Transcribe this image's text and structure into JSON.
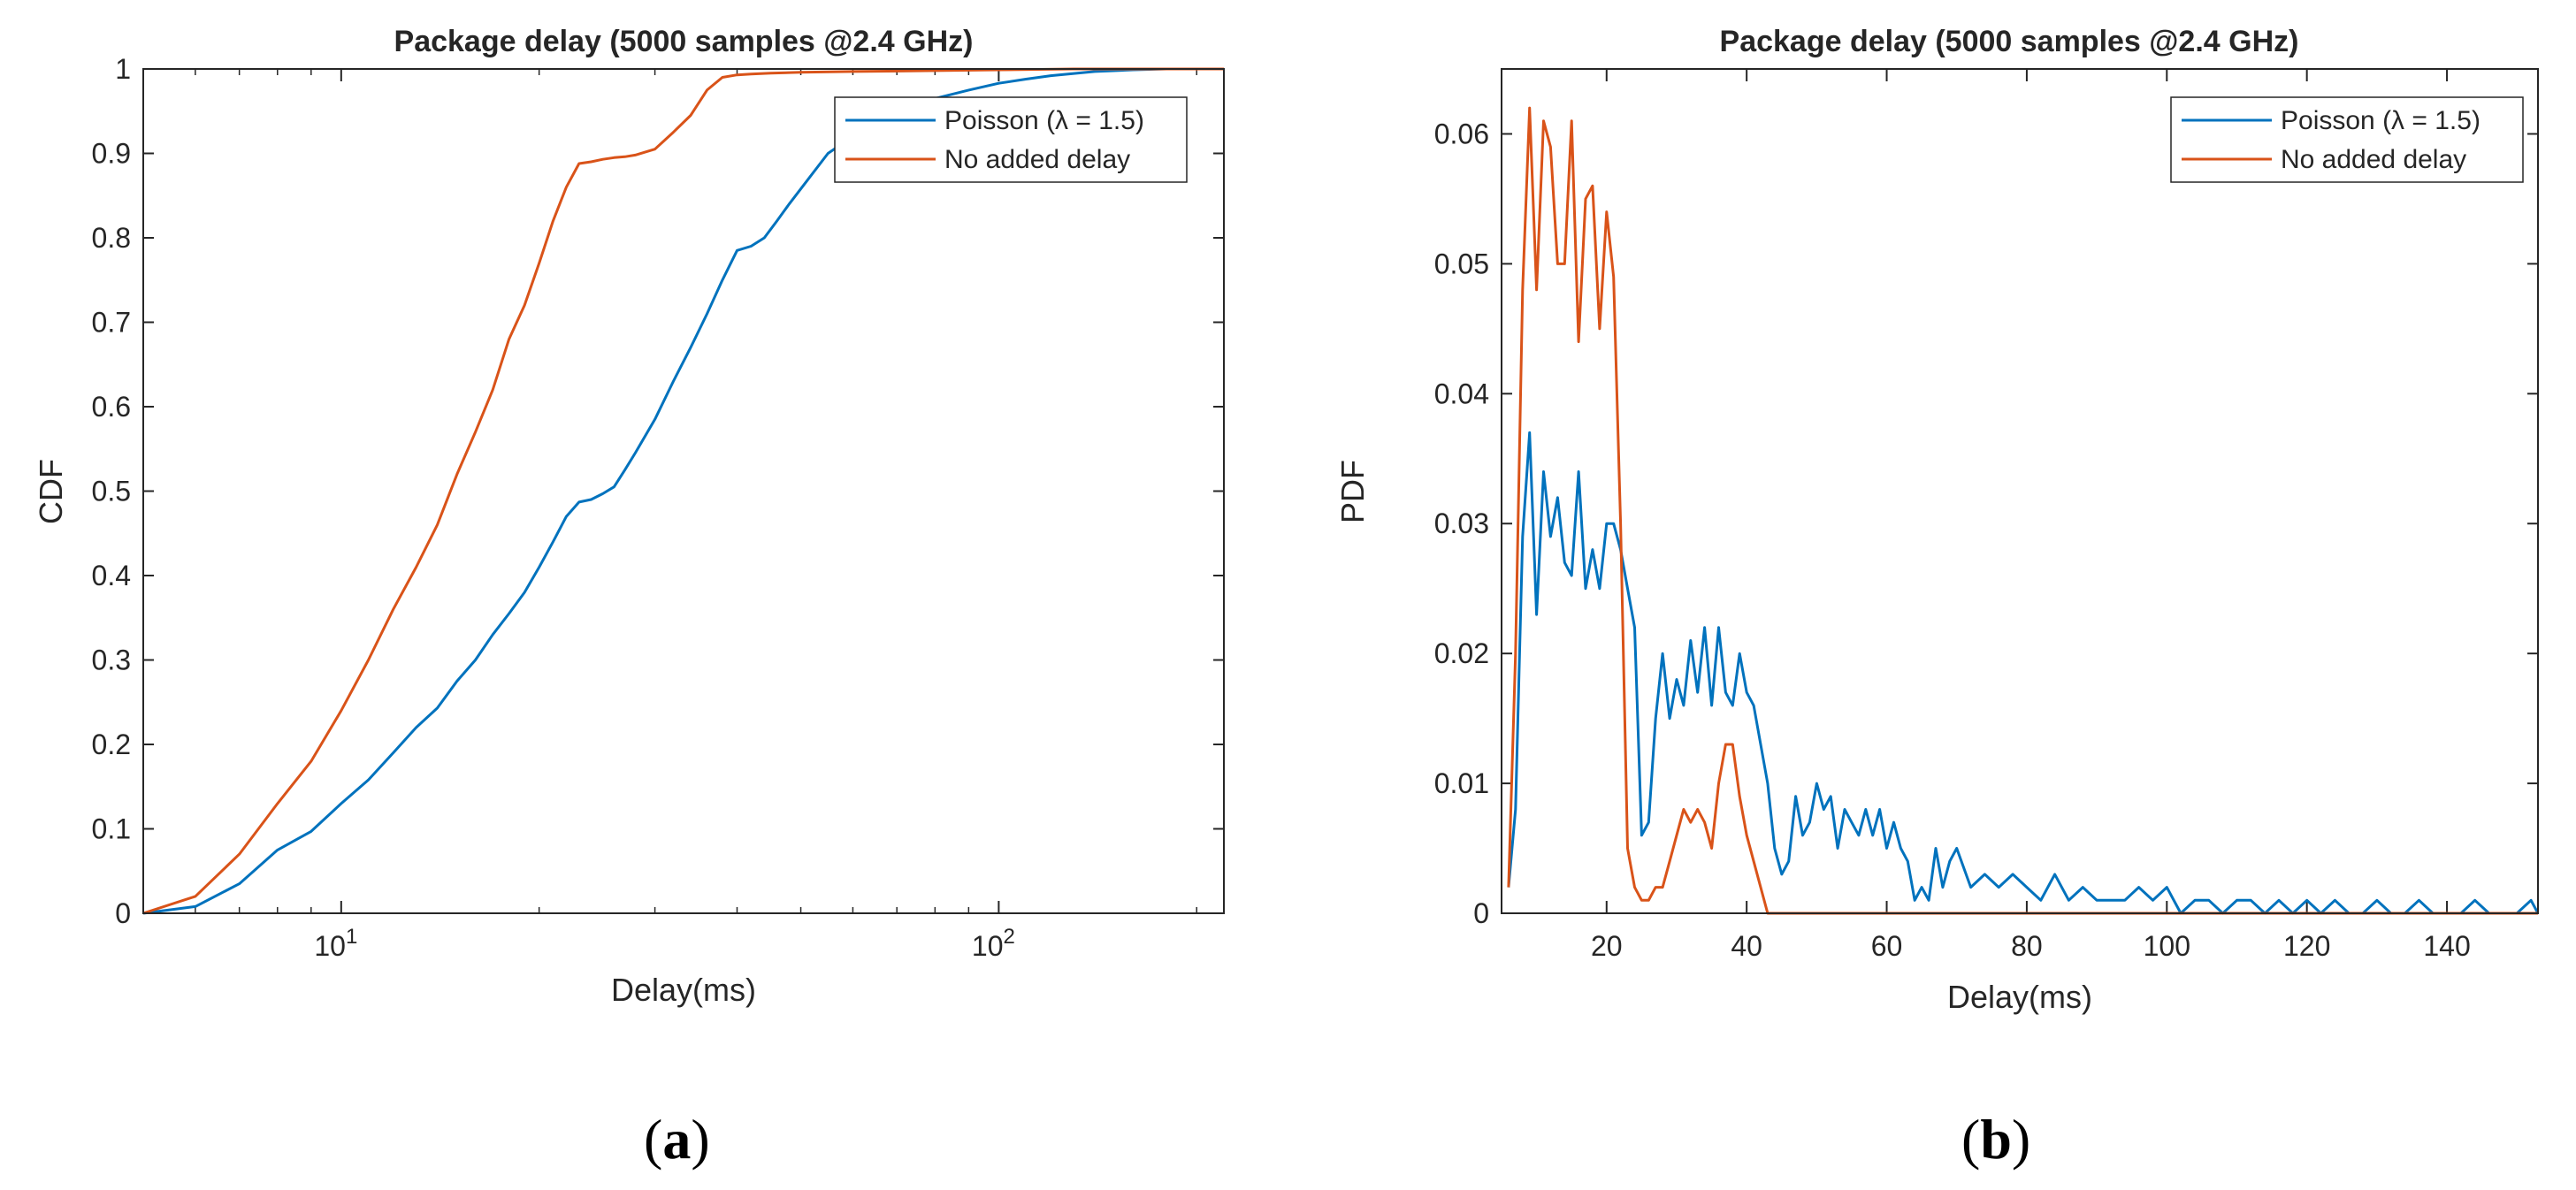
{
  "chart_data": [
    {
      "id": "a",
      "type": "line",
      "title": "Package delay (5000 samples @2.4 GHz)",
      "xlabel": "Delay(ms)",
      "ylabel": "CDF",
      "xscale": "log",
      "xlim": [
        5,
        220
      ],
      "ylim": [
        0,
        1
      ],
      "xticks": [
        10,
        100
      ],
      "xtick_labels": [
        {
          "base": "10",
          "exp": "1"
        },
        {
          "base": "10",
          "exp": "2"
        }
      ],
      "yticks": [
        0,
        0.1,
        0.2,
        0.3,
        0.4,
        0.5,
        0.6,
        0.7,
        0.8,
        0.9,
        1
      ],
      "ytick_labels": [
        "0",
        "0.1",
        "0.2",
        "0.3",
        "0.4",
        "0.5",
        "0.6",
        "0.7",
        "0.8",
        "0.9",
        "1"
      ],
      "legend_position": "top-right",
      "caption": {
        "open": "(",
        "letter": "a",
        "close": ")"
      },
      "series": [
        {
          "name": "Poisson (λ = 1.5)",
          "color": "#0072BD",
          "x": [
            5,
            6,
            7,
            8,
            9,
            10,
            11,
            12,
            13,
            14,
            15,
            16,
            17,
            18,
            19,
            20,
            21,
            22,
            23,
            24,
            25,
            26,
            27,
            28,
            30,
            32,
            34,
            36,
            38,
            40,
            42,
            44,
            46,
            48,
            50,
            55,
            60,
            65,
            70,
            75,
            80,
            90,
            100,
            110,
            120,
            140,
            160,
            180,
            200,
            220
          ],
          "y": [
            0.0,
            0.008,
            0.035,
            0.075,
            0.097,
            0.13,
            0.158,
            0.19,
            0.22,
            0.243,
            0.275,
            0.3,
            0.33,
            0.355,
            0.38,
            0.41,
            0.44,
            0.47,
            0.487,
            0.49,
            0.497,
            0.505,
            0.525,
            0.545,
            0.585,
            0.63,
            0.67,
            0.71,
            0.75,
            0.785,
            0.79,
            0.8,
            0.82,
            0.84,
            0.858,
            0.9,
            0.92,
            0.936,
            0.95,
            0.958,
            0.965,
            0.975,
            0.983,
            0.988,
            0.992,
            0.997,
            0.999,
            1.0,
            1.0,
            1.0
          ]
        },
        {
          "name": "No added delay",
          "color": "#D95319",
          "x": [
            5,
            6,
            7,
            8,
            9,
            10,
            11,
            12,
            13,
            14,
            15,
            16,
            17,
            18,
            19,
            20,
            21,
            22,
            23,
            24,
            25,
            26,
            27,
            28,
            30,
            32,
            34,
            36,
            38,
            40,
            42,
            45,
            50,
            60,
            80,
            100,
            130,
            160,
            220
          ],
          "y": [
            0.0,
            0.02,
            0.07,
            0.13,
            0.18,
            0.24,
            0.3,
            0.36,
            0.41,
            0.46,
            0.52,
            0.57,
            0.62,
            0.68,
            0.72,
            0.77,
            0.82,
            0.86,
            0.888,
            0.89,
            0.893,
            0.895,
            0.896,
            0.898,
            0.905,
            0.925,
            0.945,
            0.975,
            0.99,
            0.993,
            0.994,
            0.995,
            0.996,
            0.997,
            0.998,
            0.999,
            1.0,
            1.0,
            1.0
          ]
        }
      ]
    },
    {
      "id": "b",
      "type": "line",
      "title": "Package delay (5000 samples @2.4 GHz)",
      "xlabel": "Delay(ms)",
      "ylabel": "PDF",
      "xscale": "linear",
      "xlim": [
        5,
        153
      ],
      "ylim": [
        0,
        0.065
      ],
      "xticks": [
        20,
        40,
        60,
        80,
        100,
        120,
        140
      ],
      "xtick_labels": [
        "20",
        "40",
        "60",
        "80",
        "100",
        "120",
        "140"
      ],
      "yticks": [
        0,
        0.01,
        0.02,
        0.03,
        0.04,
        0.05,
        0.06
      ],
      "ytick_labels": [
        "0",
        "0.01",
        "0.02",
        "0.03",
        "0.04",
        "0.05",
        "0.06"
      ],
      "legend_position": "top-right",
      "caption": {
        "open": "(",
        "letter": "b",
        "close": ")"
      },
      "series": [
        {
          "name": "Poisson (λ = 1.5)",
          "color": "#0072BD",
          "x": [
            6,
            7,
            8,
            9,
            10,
            11,
            12,
            13,
            14,
            15,
            16,
            17,
            18,
            19,
            20,
            21,
            22,
            23,
            24,
            25,
            26,
            27,
            28,
            29,
            30,
            31,
            32,
            33,
            34,
            35,
            36,
            37,
            38,
            39,
            40,
            41,
            42,
            43,
            44,
            45,
            46,
            47,
            48,
            49,
            50,
            51,
            52,
            53,
            54,
            55,
            56,
            57,
            58,
            59,
            60,
            61,
            62,
            63,
            64,
            65,
            66,
            67,
            68,
            69,
            70,
            72,
            74,
            76,
            78,
            80,
            82,
            84,
            86,
            88,
            90,
            92,
            94,
            96,
            98,
            100,
            102,
            104,
            106,
            108,
            110,
            112,
            114,
            116,
            118,
            120,
            122,
            124,
            126,
            128,
            130,
            132,
            134,
            136,
            138,
            140,
            142,
            144,
            146,
            148,
            150,
            152,
            153
          ],
          "y": [
            0.002,
            0.008,
            0.029,
            0.037,
            0.023,
            0.034,
            0.029,
            0.032,
            0.027,
            0.026,
            0.034,
            0.025,
            0.028,
            0.025,
            0.03,
            0.03,
            0.028,
            0.025,
            0.022,
            0.006,
            0.007,
            0.015,
            0.02,
            0.015,
            0.018,
            0.016,
            0.021,
            0.017,
            0.022,
            0.016,
            0.022,
            0.017,
            0.016,
            0.02,
            0.017,
            0.016,
            0.013,
            0.01,
            0.005,
            0.003,
            0.004,
            0.009,
            0.006,
            0.007,
            0.01,
            0.008,
            0.009,
            0.005,
            0.008,
            0.007,
            0.006,
            0.008,
            0.006,
            0.008,
            0.005,
            0.007,
            0.005,
            0.004,
            0.001,
            0.002,
            0.001,
            0.005,
            0.002,
            0.004,
            0.005,
            0.002,
            0.003,
            0.002,
            0.003,
            0.002,
            0.001,
            0.003,
            0.001,
            0.002,
            0.001,
            0.001,
            0.001,
            0.002,
            0.001,
            0.002,
            0.0,
            0.001,
            0.001,
            0.0,
            0.001,
            0.001,
            0.0,
            0.001,
            0.0,
            0.001,
            0.0,
            0.001,
            0.0,
            0.0,
            0.001,
            0.0,
            0.0,
            0.001,
            0.0,
            0.0,
            0.0,
            0.001,
            0.0,
            0.0,
            0.0,
            0.001,
            0.0
          ]
        },
        {
          "name": "No added delay",
          "color": "#D95319",
          "x": [
            6,
            7,
            8,
            9,
            10,
            11,
            12,
            13,
            14,
            15,
            16,
            17,
            18,
            19,
            20,
            21,
            22,
            23,
            24,
            25,
            26,
            27,
            28,
            29,
            30,
            31,
            32,
            33,
            34,
            35,
            36,
            37,
            38,
            39,
            40,
            41,
            42,
            43,
            44,
            45,
            50,
            60,
            70,
            80,
            90,
            100,
            120,
            140,
            153
          ],
          "y": [
            0.002,
            0.02,
            0.048,
            0.062,
            0.048,
            0.061,
            0.059,
            0.05,
            0.05,
            0.061,
            0.044,
            0.055,
            0.056,
            0.045,
            0.054,
            0.049,
            0.03,
            0.005,
            0.002,
            0.001,
            0.001,
            0.002,
            0.002,
            0.004,
            0.006,
            0.008,
            0.007,
            0.008,
            0.007,
            0.005,
            0.01,
            0.013,
            0.013,
            0.009,
            0.006,
            0.004,
            0.002,
            0.0,
            0.0,
            0.0,
            0.0,
            0.0,
            0.0,
            0.0,
            0.0,
            0.0,
            0.0,
            0.0,
            0.0
          ]
        }
      ]
    }
  ]
}
